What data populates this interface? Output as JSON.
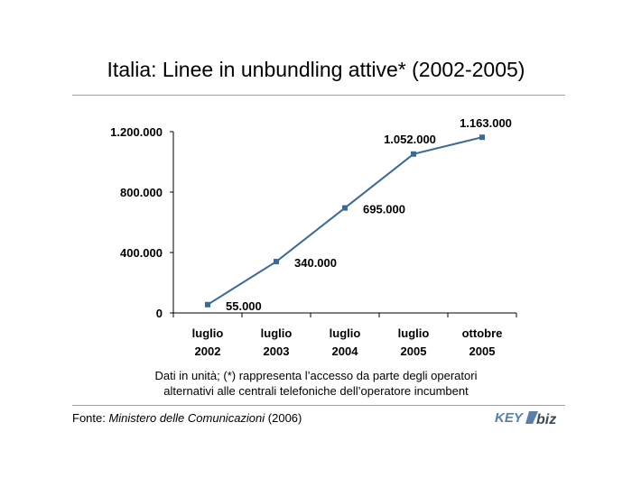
{
  "title": "Italia: Linee in unbundling attive* (2002-2005)",
  "note": {
    "line1": "Dati in unità; (*) rappresenta l’accesso da parte degli operatori",
    "line2": "alternativi alle centrali telefoniche dell’operatore incumbent"
  },
  "source": {
    "prefix": "Fonte: ",
    "work": "Ministero delle Comunicazioni",
    "suffix": " (2006)"
  },
  "logo": {
    "part1": "KEY",
    "part2": "biz"
  },
  "colors": {
    "series": "#3a6a98",
    "axis": "#000000",
    "rule": "#a0a0a0"
  },
  "chart_data": {
    "type": "line",
    "title": "Italia: Linee in unbundling attive* (2002-2005)",
    "categories": [
      [
        "luglio",
        "2002"
      ],
      [
        "luglio",
        "2003"
      ],
      [
        "luglio",
        "2004"
      ],
      [
        "luglio",
        "2005"
      ],
      [
        "ottobre",
        "2005"
      ]
    ],
    "series": [
      {
        "values": [
          55000,
          340000,
          695000,
          1052000,
          1163000
        ],
        "labels": [
          "55.000",
          "340.000",
          "695.000",
          "1.052.000",
          "1.163.000"
        ]
      }
    ],
    "yticks": [
      0,
      400000,
      800000,
      1200000
    ],
    "ytick_labels": [
      "0",
      "400.000",
      "800.000",
      "1.200.000"
    ],
    "ylim": [
      0,
      1200000
    ],
    "grid": false,
    "legend": "none"
  }
}
